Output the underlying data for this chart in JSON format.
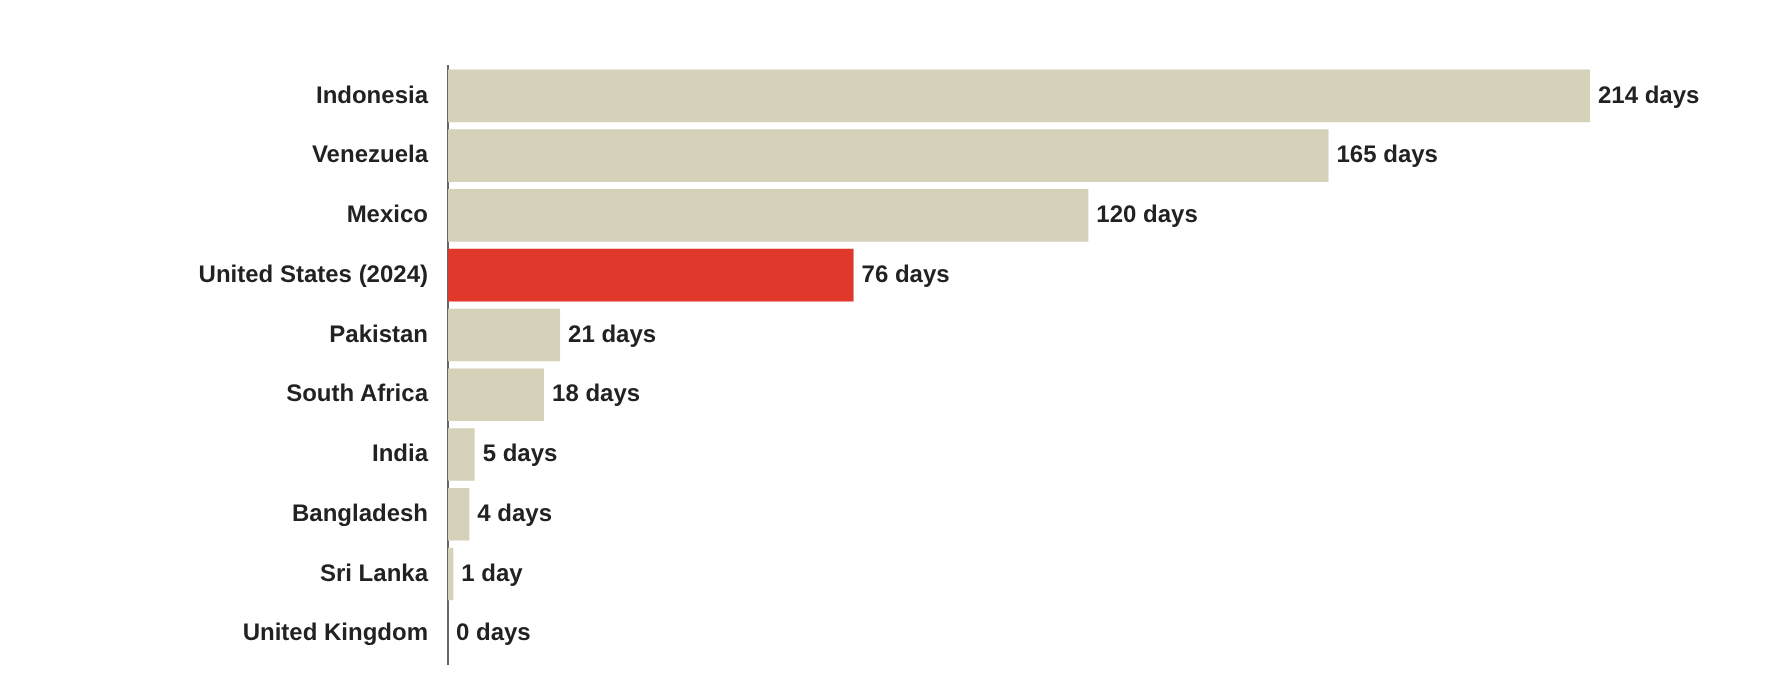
{
  "chart_data": {
    "type": "bar",
    "orientation": "horizontal",
    "categories": [
      "Indonesia",
      "Venezuela",
      "Mexico",
      "United States (2024)",
      "Pakistan",
      "South Africa",
      "India",
      "Bangladesh",
      "Sri Lanka",
      "United Kingdom"
    ],
    "values": [
      214,
      165,
      120,
      76,
      21,
      18,
      5,
      4,
      1,
      0
    ],
    "colors": [
      "#d6d2b9",
      "#d6d2b9",
      "#d6d2b9",
      "#e0382a",
      "#d6d2b9",
      "#d6d2b9",
      "#d6d2b9",
      "#d6d2b9",
      "#d6d2b9",
      "#d6d2b9"
    ],
    "value_labels": [
      "214 days",
      "165 days",
      "120 days",
      "76 days",
      "21 days",
      "18 days",
      "5 days",
      "4 days",
      "1 day",
      "0 days"
    ],
    "legend": false
  }
}
